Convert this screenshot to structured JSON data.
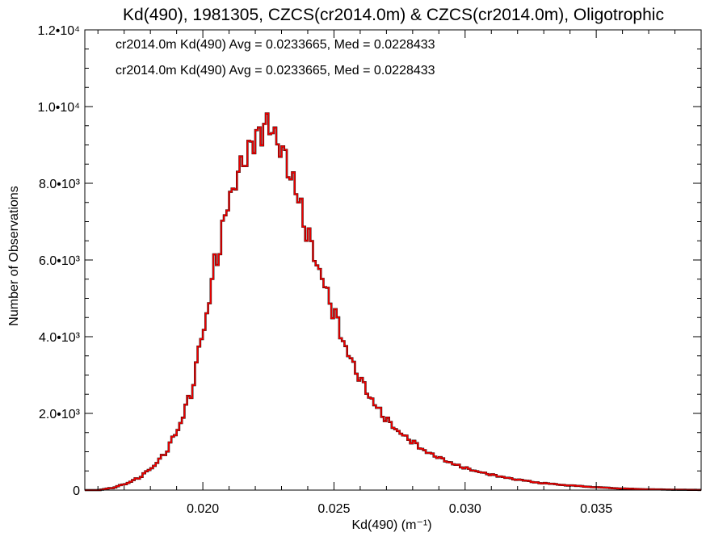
{
  "chart_data": {
    "type": "histogram",
    "title": "Kd(490), 1981305, CZCS(cr2014.0m) & CZCS(cr2014.0m), Oligotrophic",
    "xlabel": "Kd(490) (m⁻¹)",
    "ylabel": "Number of Observations",
    "xlim": [
      0.0155,
      0.039
    ],
    "ylim": [
      0,
      12000
    ],
    "x_ticks": [
      {
        "value": 0.02,
        "label": "0.020"
      },
      {
        "value": 0.025,
        "label": "0.025"
      },
      {
        "value": 0.03,
        "label": "0.030"
      },
      {
        "value": 0.035,
        "label": "0.035"
      }
    ],
    "y_ticks": [
      {
        "value": 0,
        "label": "0"
      },
      {
        "value": 2000,
        "label": "2.0•10³"
      },
      {
        "value": 4000,
        "label": "4.0•10³"
      },
      {
        "value": 6000,
        "label": "6.0•10³"
      },
      {
        "value": 8000,
        "label": "8.0•10³"
      },
      {
        "value": 10000,
        "label": "1.0•10⁴"
      },
      {
        "value": 12000,
        "label": "1.2•10⁴"
      }
    ],
    "bin_width": 0.0001,
    "bins": [
      [
        0.0155,
        0
      ],
      [
        0.016,
        0
      ],
      [
        0.0165,
        50
      ],
      [
        0.017,
        150
      ],
      [
        0.0175,
        300
      ],
      [
        0.018,
        550
      ],
      [
        0.0185,
        900
      ],
      [
        0.019,
        1500
      ],
      [
        0.0195,
        2400
      ],
      [
        0.02,
        4100
      ],
      [
        0.0205,
        6000
      ],
      [
        0.021,
        7600
      ],
      [
        0.0215,
        8500
      ],
      [
        0.022,
        9100
      ],
      [
        0.0225,
        9500
      ],
      [
        0.023,
        8900
      ],
      [
        0.0235,
        8000
      ],
      [
        0.024,
        6700
      ],
      [
        0.0245,
        5600
      ],
      [
        0.025,
        4600
      ],
      [
        0.0255,
        3600
      ],
      [
        0.026,
        2900
      ],
      [
        0.0265,
        2300
      ],
      [
        0.027,
        1850
      ],
      [
        0.0275,
        1500
      ],
      [
        0.028,
        1250
      ],
      [
        0.0285,
        1000
      ],
      [
        0.029,
        850
      ],
      [
        0.0295,
        700
      ],
      [
        0.03,
        580
      ],
      [
        0.0305,
        480
      ],
      [
        0.031,
        400
      ],
      [
        0.0315,
        330
      ],
      [
        0.032,
        270
      ],
      [
        0.033,
        180
      ],
      [
        0.034,
        120
      ],
      [
        0.035,
        75
      ],
      [
        0.036,
        40
      ],
      [
        0.037,
        20
      ],
      [
        0.038,
        10
      ],
      [
        0.039,
        5
      ]
    ],
    "series": [
      {
        "name": "cr2014.0m Kd(490)",
        "color": "#000000"
      },
      {
        "name": "cr2014.0m Kd(490)",
        "color": "#ee0000"
      }
    ],
    "annotations": [
      {
        "text": "cr2014.0m Kd(490) Avg = 0.0233665, Med = 0.0228433",
        "color": "#000000"
      },
      {
        "text": "cr2014.0m Kd(490) Avg = 0.0233665, Med = 0.0228433",
        "color": "#ee0000"
      }
    ]
  }
}
